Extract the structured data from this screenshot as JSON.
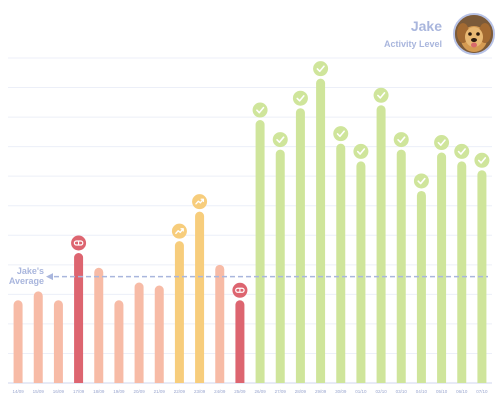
{
  "header": {
    "name": "Jake",
    "subtitle": "Activity Level",
    "avatar_icon": "dog-avatar-icon"
  },
  "chart_data": {
    "type": "bar",
    "categories": [
      "14/09",
      "15/09",
      "16/09",
      "17/09",
      "18/09",
      "19/09",
      "20/09",
      "21/09",
      "22/09",
      "23/09",
      "24/09",
      "25/09",
      "26/09",
      "27/09",
      "28/09",
      "29/09",
      "30/09",
      "01/10",
      "02/10",
      "03/10",
      "04/10",
      "05/10",
      "06/10",
      "07/10"
    ],
    "values": [
      28,
      31,
      28,
      44,
      39,
      28,
      34,
      33,
      48,
      58,
      40,
      28,
      89,
      79,
      93,
      103,
      81,
      75,
      94,
      79,
      65,
      78,
      75,
      72
    ],
    "status": [
      "normal",
      "normal",
      "normal",
      "low",
      "normal",
      "normal",
      "normal",
      "normal",
      "rising",
      "rising",
      "normal",
      "low",
      "good",
      "good",
      "good",
      "good",
      "good",
      "good",
      "good",
      "good",
      "good",
      "good",
      "good",
      "good"
    ],
    "icons": {
      "low": "sleep-icon",
      "rising": "trend-up-icon",
      "good": "check-icon"
    },
    "average": 36,
    "average_label": [
      "Jake's",
      "Average"
    ],
    "ylim": [
      0,
      110
    ],
    "grid": true,
    "title": "",
    "xlabel": "",
    "ylabel": "",
    "colors": {
      "normal": "#f7bba6",
      "low": "#dd6570",
      "rising": "#f7cd7c",
      "good": "#cfe59b",
      "average": "#a9b6dd",
      "grid": "#eceff8",
      "tick": "#9aa6cf"
    }
  }
}
